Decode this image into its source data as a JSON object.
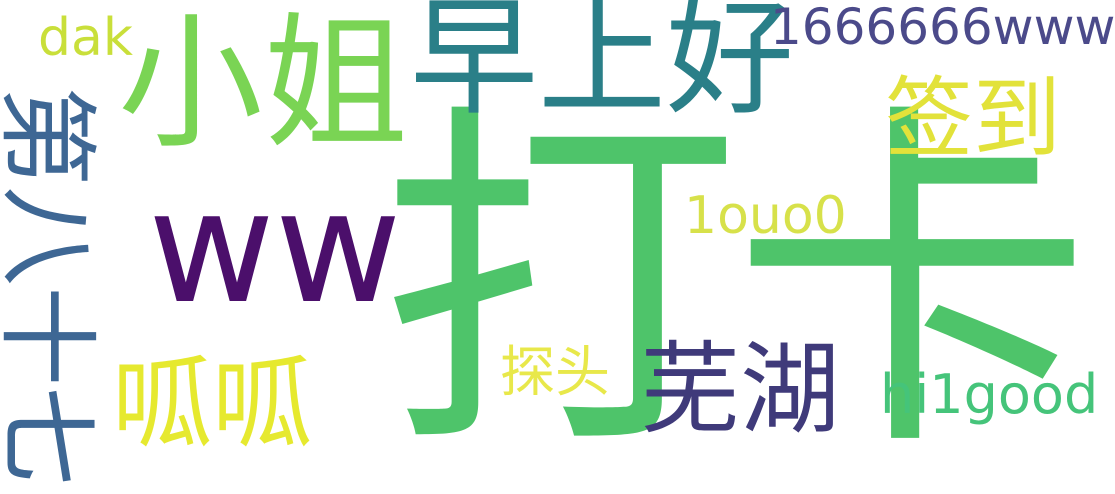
{
  "words": [
    {
      "id": "daka",
      "text": "打卡",
      "color": "#4ec46a"
    },
    {
      "id": "xiaojie",
      "text": "小姐",
      "color": "#7ad454"
    },
    {
      "id": "zaoshang",
      "text": "早上好",
      "color": "#2a7f88"
    },
    {
      "id": "ww",
      "text": "ww",
      "color": "#4b0f6b"
    },
    {
      "id": "digits",
      "text": "1666666www",
      "color": "#4b4a8a"
    },
    {
      "id": "dak",
      "text": "dak",
      "color": "#c9df3a"
    },
    {
      "id": "qiandao",
      "text": "签到",
      "color": "#e2e23a"
    },
    {
      "id": "louo",
      "text": "1ouo0",
      "color": "#d7e14a"
    },
    {
      "id": "wuhu",
      "text": "芜湖",
      "color": "#3f3a7a"
    },
    {
      "id": "gugu",
      "text": "呱呱",
      "color": "#e6e92f"
    },
    {
      "id": "tantou",
      "text": "探头",
      "color": "#e8e84a"
    },
    {
      "id": "hi1",
      "text": "hi1good",
      "color": "#45c47a"
    },
    {
      "id": "vert",
      "text": "第八十七",
      "color": "#3e6794"
    }
  ]
}
